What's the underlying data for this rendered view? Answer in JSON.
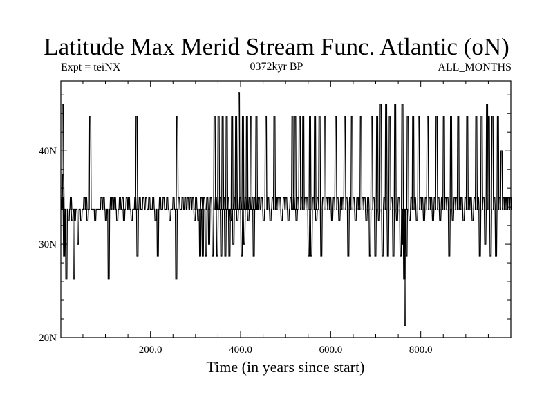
{
  "chart_data": {
    "type": "line",
    "title": "Latitude Max Merid Stream Func. Atlantic (oN)",
    "subtitle_left": "Expt = teiNX",
    "subtitle_center": "0372kyr BP",
    "subtitle_right": "ALL_MONTHS",
    "xlabel": "Time (in years since start)",
    "ylabel": "",
    "xlim": [
      1,
      1000
    ],
    "ylim": [
      20,
      47.5
    ],
    "x_ticks": [
      200,
      400,
      600,
      800
    ],
    "x_tick_labels": [
      "200.0",
      "400.0",
      "600.0",
      "800.0"
    ],
    "y_ticks": [
      20,
      30,
      40
    ],
    "y_tick_labels": [
      "20N",
      "30N",
      "40N"
    ],
    "grid": false,
    "baseline": 33.75,
    "levels": [
      21.25,
      26.25,
      28.75,
      30,
      32.5,
      35,
      37.5,
      43.75,
      45,
      46.25
    ],
    "series": [
      {
        "values": [
          [
            3,
            35
          ],
          [
            4,
            45
          ],
          [
            5,
            37.5
          ],
          [
            7,
            28.75
          ],
          [
            9,
            30
          ],
          [
            12,
            26.25
          ],
          [
            17,
            32.5
          ],
          [
            22,
            35
          ],
          [
            25,
            32.5
          ],
          [
            29,
            26.25
          ],
          [
            31,
            32.5
          ],
          [
            38,
            30
          ],
          [
            45,
            32.5
          ],
          [
            52,
            35
          ],
          [
            56,
            35
          ],
          [
            59,
            32.5
          ],
          [
            65,
            43.75
          ],
          [
            76,
            32.5
          ],
          [
            90,
            35
          ],
          [
            95,
            35
          ],
          [
            100,
            32.5
          ],
          [
            106,
            26.25
          ],
          [
            111,
            35
          ],
          [
            115,
            35
          ],
          [
            120,
            35
          ],
          [
            125,
            32.5
          ],
          [
            131,
            35
          ],
          [
            137,
            35
          ],
          [
            140,
            32.5
          ],
          [
            146,
            35
          ],
          [
            151,
            35
          ],
          [
            157,
            32.5
          ],
          [
            165,
            35
          ],
          [
            168,
            43.75
          ],
          [
            170,
            28.75
          ],
          [
            175,
            35
          ],
          [
            183,
            35
          ],
          [
            189,
            35
          ],
          [
            196,
            35
          ],
          [
            205,
            35
          ],
          [
            210,
            32.5
          ],
          [
            215,
            28.75
          ],
          [
            220,
            35
          ],
          [
            228,
            35
          ],
          [
            236,
            35
          ],
          [
            242,
            32.5
          ],
          [
            250,
            35
          ],
          [
            256,
            26.25
          ],
          [
            258,
            43.75
          ],
          [
            262,
            35
          ],
          [
            270,
            35
          ],
          [
            276,
            35
          ],
          [
            282,
            35
          ],
          [
            288,
            35
          ],
          [
            293,
            35
          ],
          [
            297,
            32.5
          ],
          [
            300,
            35
          ],
          [
            305,
            32.5
          ],
          [
            309,
            28.75
          ],
          [
            312,
            35
          ],
          [
            315,
            28.75
          ],
          [
            318,
            35
          ],
          [
            322,
            28.75
          ],
          [
            325,
            35
          ],
          [
            329,
            30
          ],
          [
            333,
            35
          ],
          [
            337,
            28.75
          ],
          [
            341,
            43.75
          ],
          [
            344,
            35
          ],
          [
            347,
            28.75
          ],
          [
            350,
            43.75
          ],
          [
            353,
            35
          ],
          [
            356,
            28.75
          ],
          [
            359,
            43.75
          ],
          [
            362,
            35
          ],
          [
            365,
            28.75
          ],
          [
            368,
            43.75
          ],
          [
            371,
            35
          ],
          [
            374,
            28.75
          ],
          [
            377,
            32.5
          ],
          [
            380,
            43.75
          ],
          [
            383,
            30
          ],
          [
            386,
            35
          ],
          [
            389,
            43.75
          ],
          [
            392,
            32.5
          ],
          [
            395,
            46.25
          ],
          [
            398,
            35
          ],
          [
            401,
            28.75
          ],
          [
            404,
            43.75
          ],
          [
            407,
            30
          ],
          [
            410,
            35
          ],
          [
            413,
            43.75
          ],
          [
            416,
            32.5
          ],
          [
            419,
            35
          ],
          [
            422,
            43.75
          ],
          [
            425,
            35
          ],
          [
            428,
            28.75
          ],
          [
            431,
            35
          ],
          [
            434,
            43.75
          ],
          [
            437,
            35
          ],
          [
            440,
            35
          ],
          [
            446,
            35
          ],
          [
            450,
            32.5
          ],
          [
            455,
            43.75
          ],
          [
            460,
            35
          ],
          [
            465,
            32.5
          ],
          [
            470,
            35
          ],
          [
            474,
            43.75
          ],
          [
            478,
            35
          ],
          [
            482,
            35
          ],
          [
            486,
            35
          ],
          [
            490,
            32.5
          ],
          [
            495,
            35
          ],
          [
            500,
            35
          ],
          [
            505,
            32.5
          ],
          [
            510,
            35
          ],
          [
            514,
            43.75
          ],
          [
            517,
            35
          ],
          [
            520,
            43.75
          ],
          [
            523,
            32.5
          ],
          [
            526,
            35
          ],
          [
            530,
            43.75
          ],
          [
            534,
            35
          ],
          [
            538,
            43.75
          ],
          [
            542,
            35
          ],
          [
            546,
            35
          ],
          [
            550,
            28.75
          ],
          [
            553,
            43.75
          ],
          [
            556,
            28.75
          ],
          [
            560,
            35
          ],
          [
            564,
            43.75
          ],
          [
            567,
            32.5
          ],
          [
            570,
            35
          ],
          [
            574,
            43.75
          ],
          [
            578,
            28.75
          ],
          [
            582,
            35
          ],
          [
            586,
            43.75
          ],
          [
            590,
            35
          ],
          [
            594,
            35
          ],
          [
            598,
            35
          ],
          [
            602,
            32.5
          ],
          [
            606,
            35
          ],
          [
            610,
            43.75
          ],
          [
            614,
            35
          ],
          [
            618,
            32.5
          ],
          [
            622,
            35
          ],
          [
            626,
            35
          ],
          [
            630,
            43.75
          ],
          [
            634,
            35
          ],
          [
            638,
            28.75
          ],
          [
            642,
            35
          ],
          [
            646,
            43.75
          ],
          [
            650,
            35
          ],
          [
            654,
            32.5
          ],
          [
            658,
            35
          ],
          [
            662,
            35
          ],
          [
            666,
            43.75
          ],
          [
            670,
            35
          ],
          [
            674,
            35
          ],
          [
            678,
            32.5
          ],
          [
            682,
            35
          ],
          [
            686,
            28.75
          ],
          [
            690,
            43.75
          ],
          [
            694,
            35
          ],
          [
            698,
            28.75
          ],
          [
            702,
            43.75
          ],
          [
            706,
            32.5
          ],
          [
            710,
            45
          ],
          [
            714,
            28.75
          ],
          [
            718,
            35
          ],
          [
            722,
            45
          ],
          [
            726,
            28.75
          ],
          [
            730,
            43.75
          ],
          [
            734,
            35
          ],
          [
            738,
            28.75
          ],
          [
            742,
            45
          ],
          [
            746,
            32.5
          ],
          [
            750,
            35
          ],
          [
            754,
            28.75
          ],
          [
            758,
            45
          ],
          [
            760,
            30
          ],
          [
            762,
            26.25
          ],
          [
            764,
            21.25
          ],
          [
            767,
            28.75
          ],
          [
            770,
            43.75
          ],
          [
            774,
            32.5
          ],
          [
            778,
            35
          ],
          [
            782,
            43.75
          ],
          [
            786,
            35
          ],
          [
            790,
            32.5
          ],
          [
            794,
            43.75
          ],
          [
            798,
            35
          ],
          [
            802,
            35
          ],
          [
            806,
            32.5
          ],
          [
            810,
            35
          ],
          [
            814,
            43.75
          ],
          [
            818,
            35
          ],
          [
            822,
            35
          ],
          [
            826,
            32.5
          ],
          [
            830,
            35
          ],
          [
            834,
            43.75
          ],
          [
            838,
            35
          ],
          [
            842,
            32.5
          ],
          [
            846,
            35
          ],
          [
            850,
            43.75
          ],
          [
            854,
            35
          ],
          [
            858,
            35
          ],
          [
            862,
            28.75
          ],
          [
            866,
            43.75
          ],
          [
            870,
            32.5
          ],
          [
            874,
            35
          ],
          [
            878,
            35
          ],
          [
            882,
            43.75
          ],
          [
            886,
            35
          ],
          [
            890,
            35
          ],
          [
            894,
            32.5
          ],
          [
            898,
            35
          ],
          [
            902,
            43.75
          ],
          [
            906,
            35
          ],
          [
            910,
            35
          ],
          [
            914,
            32.5
          ],
          [
            918,
            35
          ],
          [
            922,
            43.75
          ],
          [
            926,
            35
          ],
          [
            930,
            28.75
          ],
          [
            934,
            43.75
          ],
          [
            938,
            35
          ],
          [
            942,
            30
          ],
          [
            946,
            45
          ],
          [
            950,
            43.75
          ],
          [
            954,
            28.75
          ],
          [
            958,
            43.75
          ],
          [
            962,
            35
          ],
          [
            966,
            28.75
          ],
          [
            970,
            43.75
          ],
          [
            974,
            35
          ],
          [
            978,
            40
          ],
          [
            982,
            35
          ],
          [
            986,
            35
          ],
          [
            990,
            35
          ],
          [
            994,
            35
          ],
          [
            998,
            35
          ]
        ]
      }
    ]
  }
}
